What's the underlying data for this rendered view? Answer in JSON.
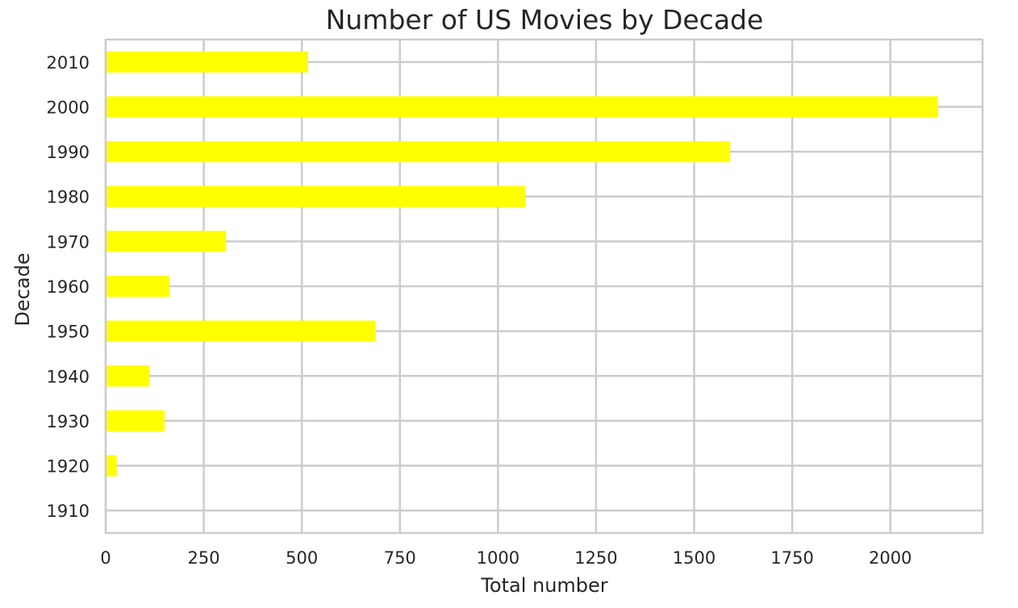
{
  "chart_data": {
    "type": "bar",
    "orientation": "horizontal",
    "title": "Number of US Movies by Decade",
    "xlabel": "Total number",
    "ylabel": "Decade",
    "categories": [
      "1910",
      "1920",
      "1930",
      "1940",
      "1950",
      "1960",
      "1970",
      "1980",
      "1990",
      "2000",
      "2010"
    ],
    "values": [
      0,
      28,
      150,
      111,
      688,
      163,
      307,
      1069,
      1592,
      2122,
      516
    ],
    "xlim": [
      0,
      2235
    ],
    "xticks": [
      0,
      250,
      500,
      750,
      1000,
      1250,
      1500,
      1750,
      2000
    ],
    "bar_color": "#ffff00",
    "grid": true
  }
}
